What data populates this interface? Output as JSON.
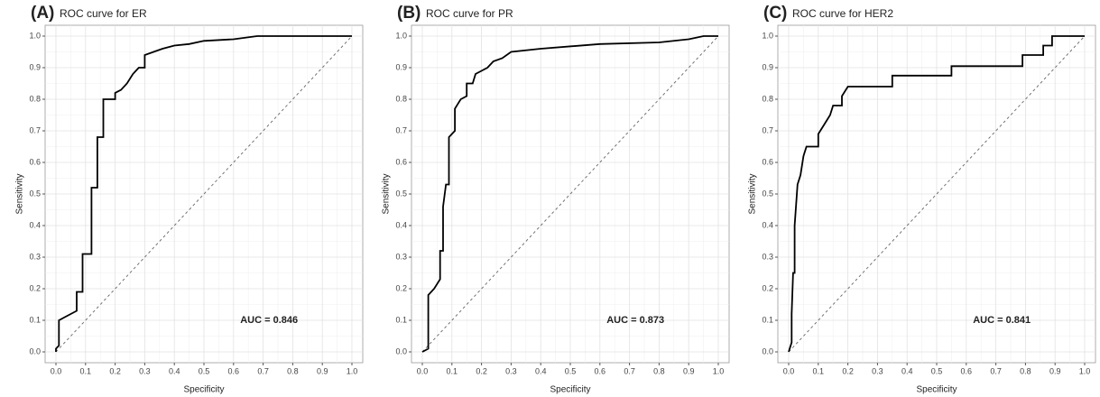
{
  "chart_data": [
    {
      "type": "line",
      "panel_label": "(A)",
      "title": "ROC curve for ER",
      "xlabel": "Specificity",
      "ylabel": "Sensitivity",
      "annotation": "AUC = 0.846",
      "color": "#000000",
      "grid": true,
      "xlim": [
        0,
        1
      ],
      "ylim": [
        0,
        1
      ],
      "xticks": [
        {
          "value": 0,
          "label": "0.0"
        },
        0.1,
        0.2,
        0.3,
        0.4,
        0.5,
        0.6,
        0.7,
        0.8,
        0.9,
        {
          "value": 1,
          "label": "1.0"
        }
      ],
      "yticks": [
        {
          "value": 0,
          "label": "0.0"
        },
        0.1,
        0.2,
        0.3,
        0.4,
        0.5,
        0.6,
        0.7,
        0.8,
        0.9,
        {
          "value": 1,
          "label": "1.0"
        }
      ],
      "x": [
        0,
        0,
        0.01,
        0.01,
        0.03,
        0.05,
        0.07,
        0.07,
        0.09,
        0.09,
        0.12,
        0.12,
        0.14,
        0.14,
        0.16,
        0.16,
        0.2,
        0.2,
        0.22,
        0.24,
        0.26,
        0.28,
        0.3,
        0.3,
        0.33,
        0.36,
        0.4,
        0.45,
        0.5,
        0.6,
        0.68,
        1
      ],
      "values": [
        0,
        0.01,
        0.02,
        0.1,
        0.11,
        0.12,
        0.13,
        0.19,
        0.19,
        0.31,
        0.31,
        0.52,
        0.52,
        0.68,
        0.68,
        0.8,
        0.8,
        0.82,
        0.83,
        0.85,
        0.88,
        0.9,
        0.9,
        0.94,
        0.95,
        0.96,
        0.97,
        0.975,
        0.985,
        0.99,
        1,
        1
      ]
    },
    {
      "type": "line",
      "panel_label": "(B)",
      "title": "ROC curve for PR",
      "xlabel": "Specificity",
      "ylabel": "Sensitivity",
      "annotation": "AUC = 0.873",
      "color": "#000000",
      "grid": true,
      "xlim": [
        0,
        1
      ],
      "ylim": [
        0,
        1
      ],
      "xticks": [
        {
          "value": 0,
          "label": "0.0"
        },
        0.1,
        0.2,
        0.3,
        0.4,
        0.5,
        0.6,
        0.7,
        0.8,
        0.9,
        {
          "value": 1,
          "label": "1.0"
        }
      ],
      "yticks": [
        {
          "value": 0,
          "label": "0.0"
        },
        0.1,
        0.2,
        0.3,
        0.4,
        0.5,
        0.6,
        0.7,
        0.8,
        0.9,
        {
          "value": 1,
          "label": "1.0"
        }
      ],
      "x": [
        0,
        0.02,
        0.02,
        0.04,
        0.06,
        0.06,
        0.07,
        0.07,
        0.08,
        0.09,
        0.09,
        0.11,
        0.11,
        0.13,
        0.15,
        0.15,
        0.17,
        0.18,
        0.2,
        0.22,
        0.24,
        0.27,
        0.3,
        0.4,
        0.6,
        0.8,
        0.9,
        0.95,
        1
      ],
      "values": [
        0,
        0.01,
        0.18,
        0.2,
        0.23,
        0.32,
        0.32,
        0.46,
        0.53,
        0.53,
        0.68,
        0.7,
        0.77,
        0.8,
        0.81,
        0.85,
        0.85,
        0.88,
        0.89,
        0.9,
        0.92,
        0.93,
        0.95,
        0.96,
        0.975,
        0.98,
        0.99,
        1,
        1
      ]
    },
    {
      "type": "line",
      "panel_label": "(C)",
      "title": "ROC curve for HER2",
      "xlabel": "Specificity",
      "ylabel": "Sensitivity",
      "annotation": "AUC = 0.841",
      "color": "#000000",
      "grid": true,
      "xlim": [
        0,
        1
      ],
      "ylim": [
        0,
        1
      ],
      "xticks": [
        {
          "value": 0,
          "label": "0.0"
        },
        0.1,
        0.2,
        0.3,
        0.4,
        0.5,
        0.6,
        0.7,
        0.8,
        0.9,
        {
          "value": 1,
          "label": "1.0"
        }
      ],
      "yticks": [
        {
          "value": 0,
          "label": "0.0"
        },
        0.1,
        0.2,
        0.3,
        0.4,
        0.5,
        0.6,
        0.7,
        0.8,
        0.9,
        {
          "value": 1,
          "label": "1.0"
        }
      ],
      "x": [
        0,
        0.01,
        0.01,
        0.015,
        0.02,
        0.02,
        0.03,
        0.04,
        0.05,
        0.06,
        0.1,
        0.1,
        0.12,
        0.14,
        0.15,
        0.18,
        0.18,
        0.2,
        0.35,
        0.35,
        0.55,
        0.55,
        0.79,
        0.79,
        0.86,
        0.86,
        0.89,
        0.89,
        1
      ],
      "values": [
        0,
        0.03,
        0.12,
        0.25,
        0.25,
        0.4,
        0.53,
        0.56,
        0.62,
        0.65,
        0.65,
        0.69,
        0.72,
        0.75,
        0.78,
        0.78,
        0.81,
        0.84,
        0.84,
        0.875,
        0.875,
        0.905,
        0.905,
        0.94,
        0.94,
        0.97,
        0.97,
        1,
        1
      ]
    }
  ]
}
